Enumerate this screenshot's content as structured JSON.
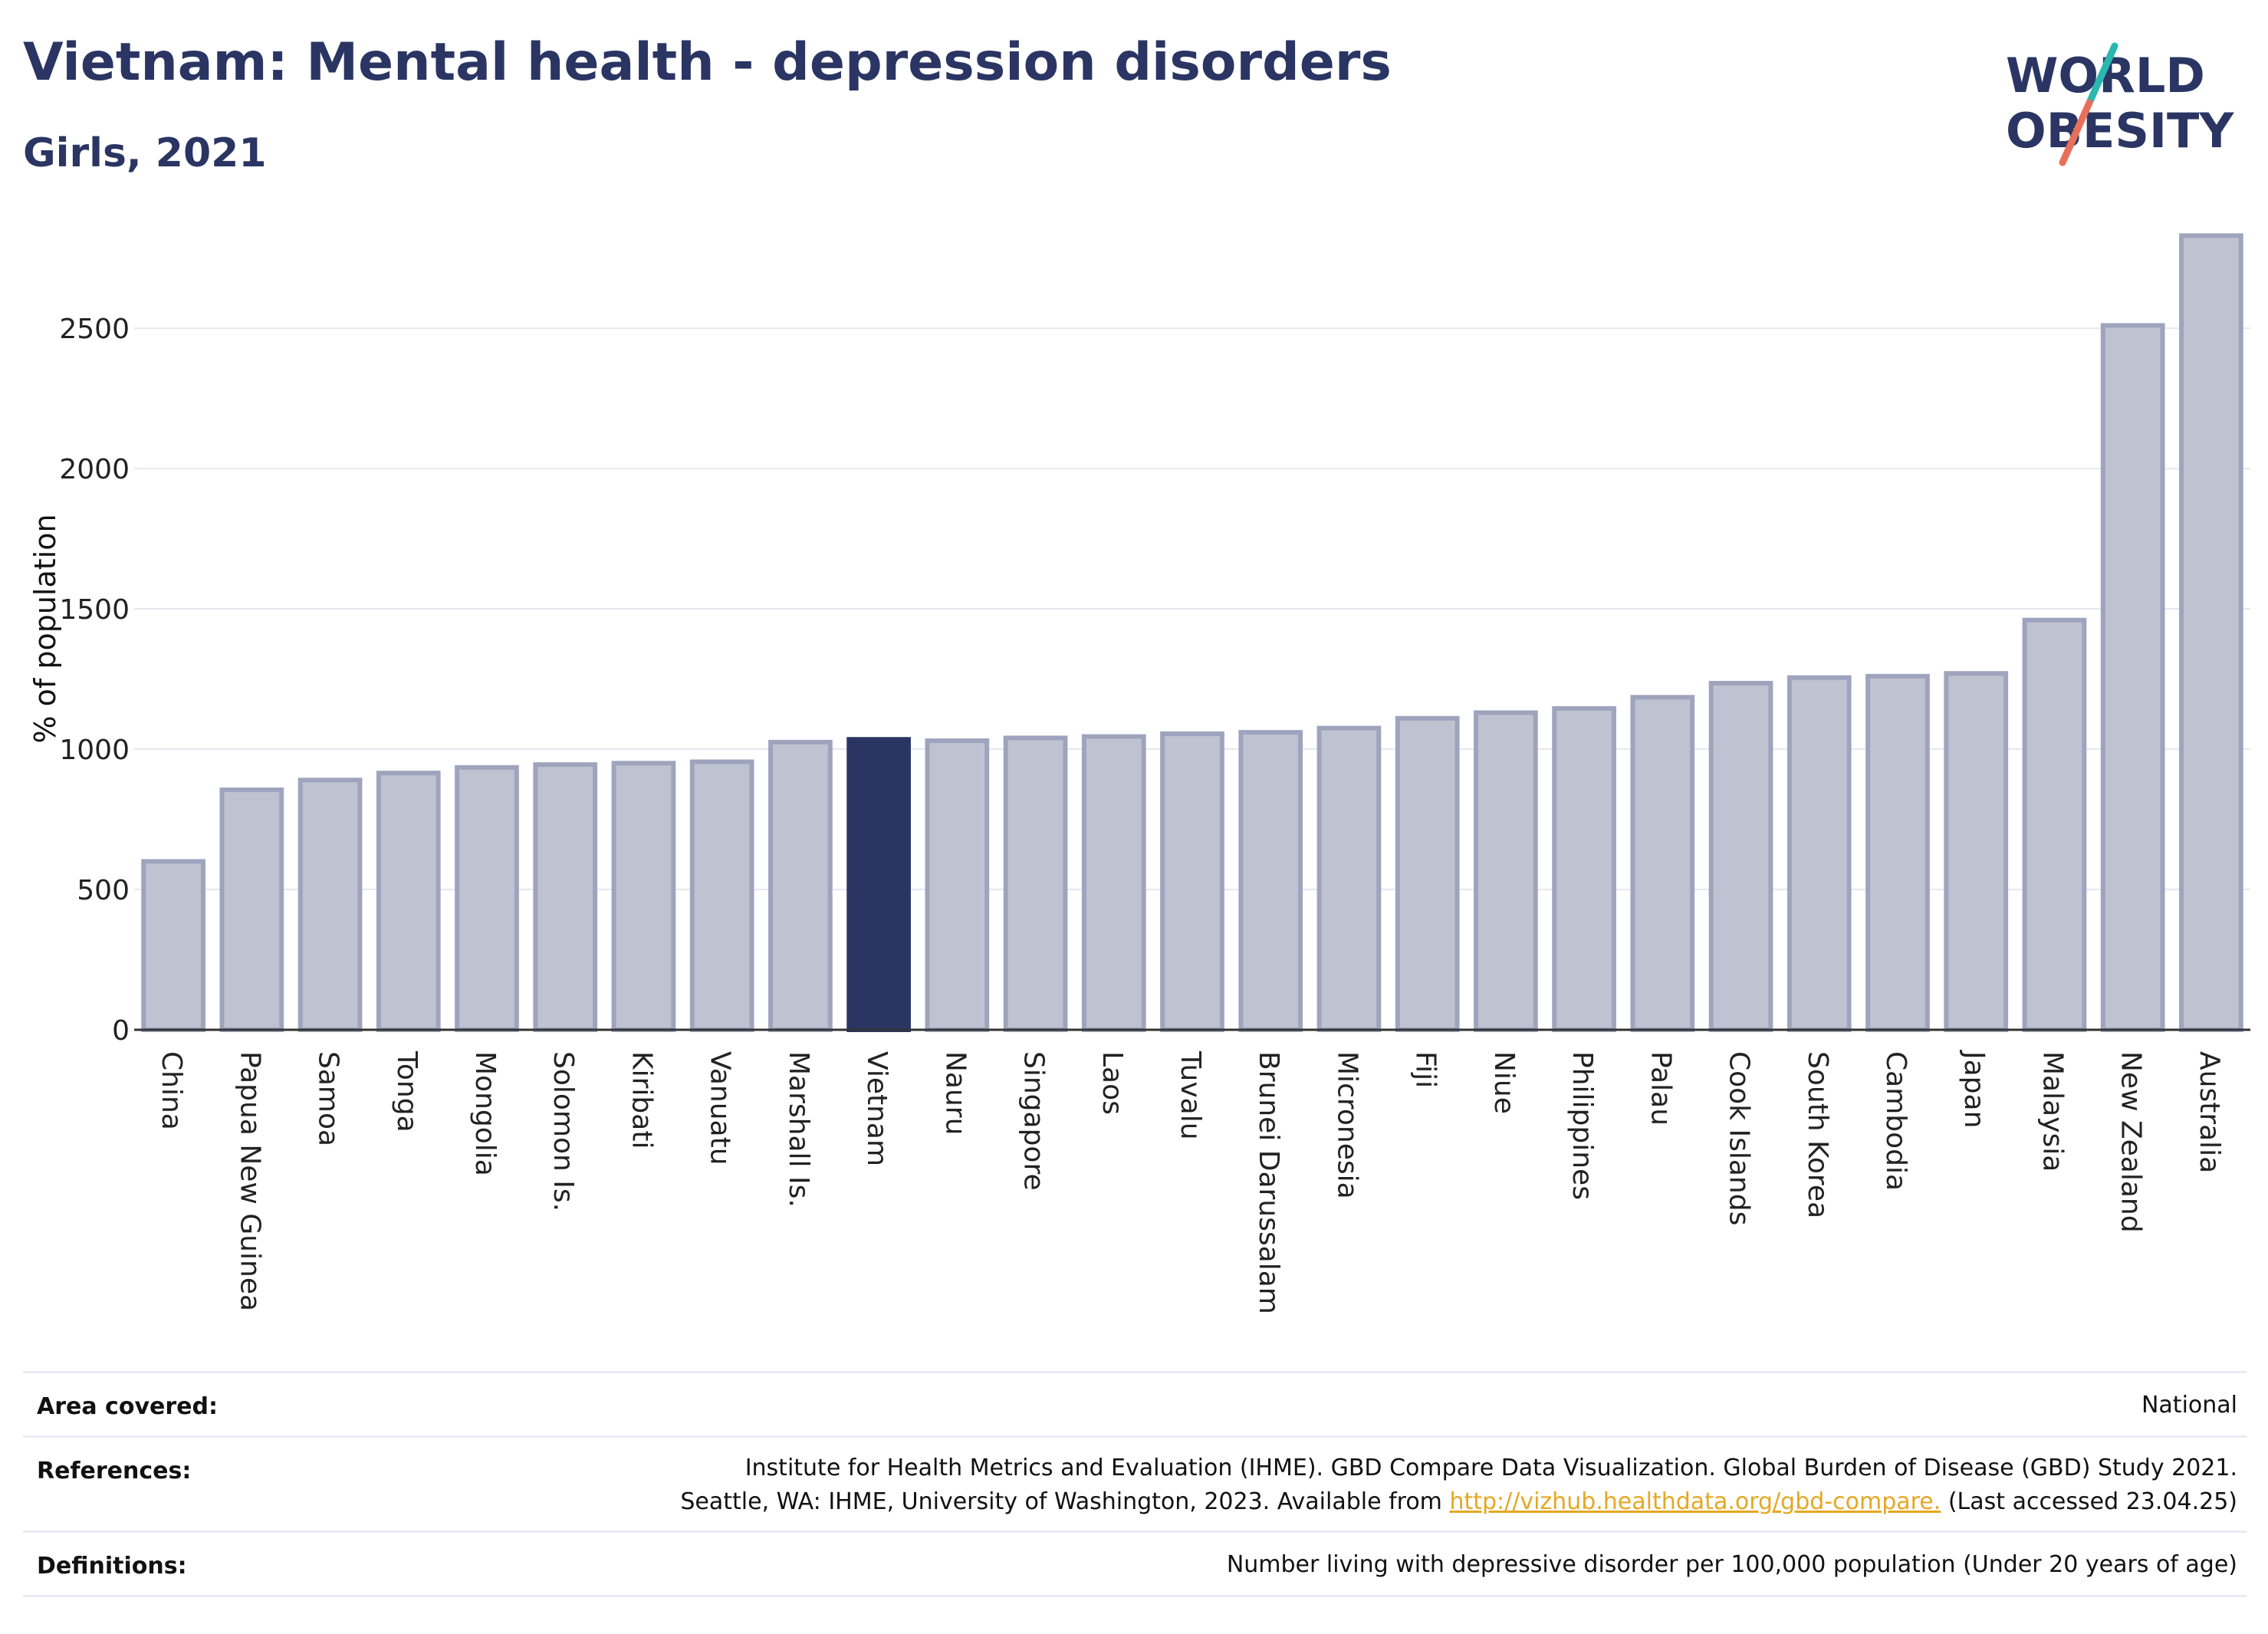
{
  "header": {
    "title": "Vietnam: Mental health - depression disorders",
    "subtitle": "Girls, 2021"
  },
  "logo": {
    "line1": "WORLD",
    "line2": "OBESITY"
  },
  "colors": {
    "bar": "#bfc3d1",
    "bar_stroke": "#9ea4bd",
    "highlight": "#2b3563",
    "title": "#2b3563",
    "link": "#e5a823",
    "grid": "#e6e8ef"
  },
  "chart_data": {
    "type": "bar",
    "ylabel": "% of population",
    "xlabel": "",
    "ylim": [
      0,
      2850
    ],
    "yticks": [
      0,
      500,
      1000,
      1500,
      2000,
      2500
    ],
    "grid": true,
    "highlight": "Vietnam",
    "categories": [
      "China",
      "Papua New Guinea",
      "Samoa",
      "Tonga",
      "Mongolia",
      "Solomon Is.",
      "Kiribati",
      "Vanuatu",
      "Marshall Is.",
      "Vietnam",
      "Nauru",
      "Singapore",
      "Laos",
      "Tuvalu",
      "Brunei Darussalam",
      "Micronesia",
      "Fiji",
      "Niue",
      "Philippines",
      "Palau",
      "Cook Islands",
      "South Korea",
      "Cambodia",
      "Japan",
      "Malaysia",
      "New Zealand",
      "Australia"
    ],
    "values": [
      600,
      855,
      890,
      915,
      935,
      945,
      950,
      955,
      1025,
      1035,
      1030,
      1040,
      1045,
      1055,
      1060,
      1075,
      1110,
      1130,
      1145,
      1185,
      1235,
      1255,
      1260,
      1270,
      1460,
      2510,
      2830
    ]
  },
  "info": {
    "area_label": "Area covered:",
    "area_value": "National",
    "references_label": "References:",
    "references_line1": "Institute for Health Metrics and Evaluation (IHME). GBD Compare Data Visualization. Global Burden of Disease (GBD) Study 2021.",
    "references_line2_pre": "Seattle, WA: IHME, University of Washington, 2023. Available from ",
    "references_link": "http://vizhub.healthdata.org/gbd-compare.",
    "references_line2_post": " (Last accessed 23.04.25)",
    "definitions_label": "Definitions:",
    "definitions_value": "Number living with depressive disorder per 100,000 population (Under 20 years of age)"
  }
}
